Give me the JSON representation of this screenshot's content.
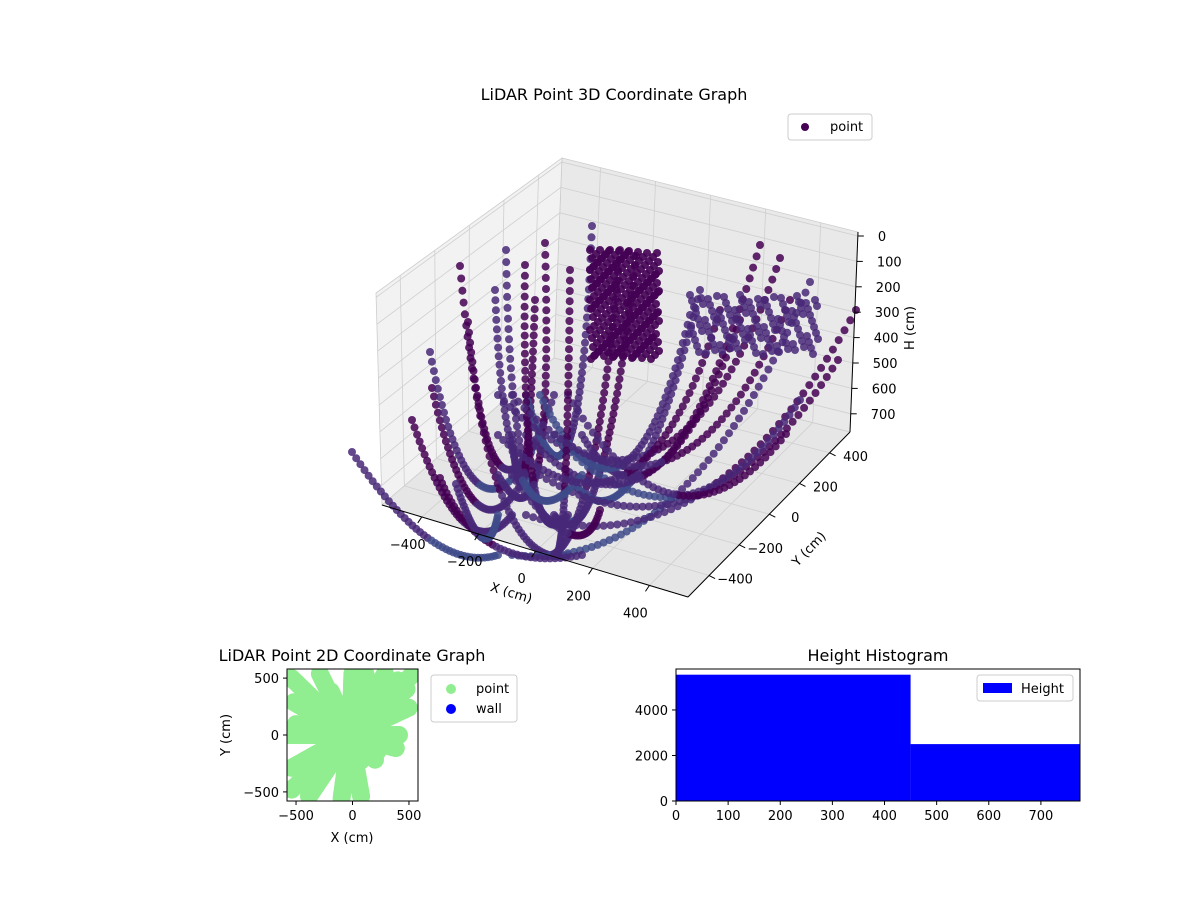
{
  "chart_data": [
    {
      "type": "scatter3d",
      "title": "LiDAR Point 3D Coordinate Graph",
      "xlabel": "X (cm)",
      "ylabel": "Y (cm)",
      "zlabel": "H (cm)",
      "xlim": [
        -550,
        550
      ],
      "ylim": [
        -550,
        550
      ],
      "zlim": [
        780,
        0
      ],
      "x_ticks": [
        "−400",
        "−200",
        "0",
        "200",
        "400"
      ],
      "y_ticks": [
        "−400",
        "−200",
        "0",
        "200",
        "400"
      ],
      "z_ticks": [
        "0",
        "100",
        "200",
        "300",
        "400",
        "500",
        "600",
        "700"
      ],
      "legend": [
        {
          "label": "point",
          "color": "#440154"
        }
      ],
      "legend_loc": "upper-right",
      "colormap": "viridis",
      "point_colors": [
        "#440154",
        "#482878",
        "#3e4a89",
        "#31688e"
      ],
      "description_ranges": {
        "x": [
          -550,
          550
        ],
        "y": [
          -550,
          550
        ],
        "h": [
          0,
          780
        ]
      }
    },
    {
      "type": "scatter",
      "title": "LiDAR Point 2D Coordinate Graph",
      "xlabel": "X (cm)",
      "ylabel": "Y (cm)",
      "xlim": [
        -580,
        580
      ],
      "ylim": [
        -580,
        580
      ],
      "x_ticks": [
        "−500",
        "0",
        "500"
      ],
      "y_ticks": [
        "−500",
        "0",
        "500"
      ],
      "series": [
        {
          "name": "point",
          "color": "#90ee90"
        },
        {
          "name": "wall",
          "color": "#0000ff"
        }
      ],
      "legend_loc": "outside-right"
    },
    {
      "type": "histogram",
      "title": "Height Histogram",
      "xlim": [
        0,
        775
      ],
      "ylim": [
        0,
        5800
      ],
      "x_ticks": [
        "0",
        "100",
        "200",
        "300",
        "400",
        "500",
        "600",
        "700"
      ],
      "y_ticks": [
        "0",
        "2000",
        "4000"
      ],
      "bins": [
        {
          "start": 0,
          "end": 450,
          "count": 5550
        },
        {
          "start": 450,
          "end": 775,
          "count": 2500
        }
      ],
      "series": [
        {
          "name": "Height",
          "color": "#0000ff"
        }
      ],
      "legend_loc": "upper-right"
    }
  ]
}
